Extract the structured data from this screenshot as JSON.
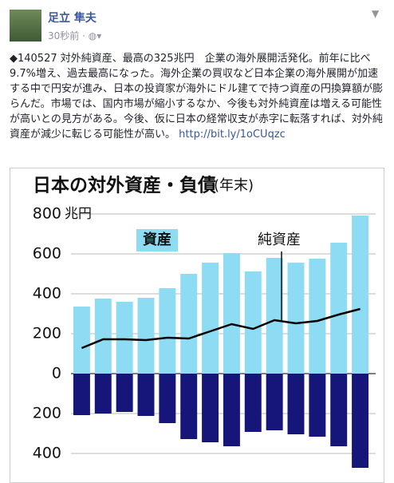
{
  "post": {
    "author": "足立 隼夫",
    "time": "30秒前",
    "separator": "·",
    "text": "◆140527 対外純資産、最高の325兆円　企業の海外展開活発化。前年に比べ9.7%増え、過去最高になった。海外企業の買収など日本企業の海外展開が加速する中で円安が進み、日本の投資家が海外にドル建てで持つ資産の円換算額が膨らんだ。市場では、国内市場が縮小するなか、今後も対外純資産は増える可能性が高いとの見方がある。今後、仮に日本の経常収支が赤字に転落すれば、対外純資産が減少に転じる可能性が高い。",
    "link": "http://bit.ly/1oCUqzc"
  },
  "chart_data": {
    "type": "bar",
    "title": "日本の対外資産・負債",
    "subtitle": "(年末)",
    "y_unit": "兆円",
    "categories": [
      null,
      null,
      null,
      null,
      null,
      null,
      null,
      null,
      null,
      null,
      null,
      null,
      null,
      null
    ],
    "series": [
      {
        "name": "資産",
        "type": "bar",
        "color": "#8ddcf4",
        "values": [
          336,
          376,
          360,
          380,
          428,
          500,
          556,
          604,
          512,
          580,
          556,
          576,
          656,
          792
        ]
      },
      {
        "name": "負債",
        "type": "bar",
        "color": "#15157a",
        "values": [
          -208,
          -200,
          -192,
          -212,
          -248,
          -328,
          -344,
          -364,
          -292,
          -284,
          -304,
          -316,
          -364,
          -472
        ]
      },
      {
        "name": "純資産",
        "type": "line",
        "color": "#000000",
        "values": [
          128,
          172,
          172,
          168,
          180,
          176,
          212,
          248,
          224,
          268,
          252,
          264,
          296,
          324
        ]
      }
    ],
    "ylim": [
      -540,
      840
    ],
    "yticks": [
      {
        "value": -400,
        "label": "400"
      },
      {
        "value": -200,
        "label": "200"
      },
      0,
      200,
      400,
      600,
      800
    ],
    "grid": true
  }
}
